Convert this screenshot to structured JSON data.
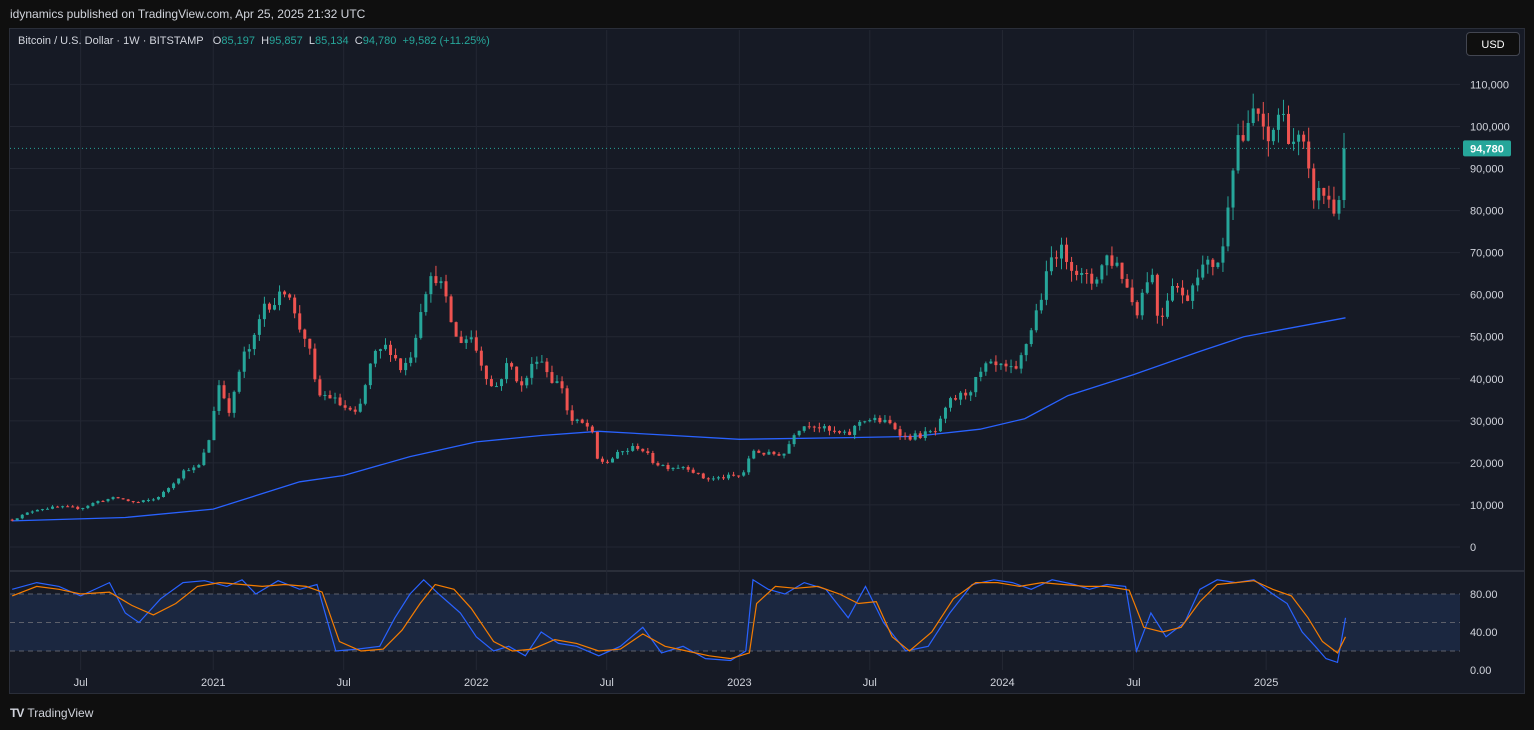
{
  "header": {
    "publisher_text": "idynamics published on TradingView.com, Apr 25, 2025 21:32 UTC"
  },
  "legend": {
    "symbol": "Bitcoin / U.S. Dollar · 1W · BITSTAMP",
    "open_label": "O",
    "open": "85,197",
    "high_label": "H",
    "high": "95,857",
    "low_label": "L",
    "low": "85,134",
    "close_label": "C",
    "close": "94,780",
    "change": "+9,582 (+11.25%)"
  },
  "currency_button": "USD",
  "last_price_label": "94,780",
  "footer": {
    "brand": "TradingView",
    "logo": "TV"
  },
  "colors": {
    "up": "#26a69a",
    "down": "#ef5350",
    "ma": "#2962ff",
    "stoch_k": "#2962ff",
    "stoch_d": "#f57c00",
    "grid": "#232733"
  },
  "chart_data": [
    {
      "type": "candlestick",
      "title": "",
      "timeframe": "1W",
      "x_ticks": [
        "Jul",
        "2021",
        "Jul",
        "2022",
        "Jul",
        "2023",
        "Jul",
        "2024",
        "Jul",
        "2025"
      ],
      "x_tick_dates": [
        "2020-07-01",
        "2021-01-01",
        "2021-07-01",
        "2022-01-01",
        "2022-07-01",
        "2023-01-01",
        "2023-07-01",
        "2024-01-01",
        "2024-07-01",
        "2025-01-01"
      ],
      "x_range": [
        "2020-03-25",
        "2025-09-20"
      ],
      "y_ticks": [
        0,
        10000,
        20000,
        30000,
        40000,
        50000,
        60000,
        70000,
        80000,
        90000,
        100000,
        110000
      ],
      "y_tick_labels": [
        "0",
        "10,000",
        "20,000",
        "30,000",
        "40,000",
        "50,000",
        "60,000",
        "70,000",
        "80,000",
        "90,000",
        "100,000",
        "110,000"
      ],
      "ylim": [
        -5000,
        117000
      ],
      "grid": true,
      "last_price": 94780,
      "close_series": {
        "dates": [
          "2020-03-28",
          "2020-05-01",
          "2020-06-01",
          "2020-07-01",
          "2020-07-27",
          "2020-08-20",
          "2020-09-15",
          "2020-10-10",
          "2020-10-25",
          "2020-11-10",
          "2020-11-25",
          "2020-12-10",
          "2020-12-25",
          "2021-01-08",
          "2021-01-25",
          "2021-02-10",
          "2021-02-25",
          "2021-03-13",
          "2021-04-01",
          "2021-04-14",
          "2021-04-25",
          "2021-05-12",
          "2021-05-25",
          "2021-06-10",
          "2021-06-25",
          "2021-07-20",
          "2021-08-10",
          "2021-09-01",
          "2021-09-20",
          "2021-10-05",
          "2021-10-20",
          "2021-11-08",
          "2021-11-20",
          "2021-12-05",
          "2021-12-25",
          "2022-01-10",
          "2022-01-25",
          "2022-02-15",
          "2022-03-05",
          "2022-03-28",
          "2022-04-15",
          "2022-05-01",
          "2022-05-10",
          "2022-05-25",
          "2022-06-10",
          "2022-06-15",
          "2022-06-30",
          "2022-07-20",
          "2022-08-15",
          "2022-09-05",
          "2022-09-25",
          "2022-10-20",
          "2022-11-09",
          "2022-11-25",
          "2022-12-20",
          "2023-01-05",
          "2023-01-20",
          "2023-02-10",
          "2023-03-05",
          "2023-03-20",
          "2023-04-10",
          "2023-05-05",
          "2023-06-01",
          "2023-06-20",
          "2023-07-15",
          "2023-08-01",
          "2023-08-20",
          "2023-09-10",
          "2023-10-01",
          "2023-10-20",
          "2023-11-15",
          "2023-12-10",
          "2024-01-01",
          "2024-01-20",
          "2024-02-10",
          "2024-02-28",
          "2024-03-13",
          "2024-04-01",
          "2024-04-20",
          "2024-05-05",
          "2024-05-25",
          "2024-06-10",
          "2024-07-05",
          "2024-07-25",
          "2024-08-05",
          "2024-08-25",
          "2024-09-10",
          "2024-09-28",
          "2024-10-15",
          "2024-11-01",
          "2024-11-12",
          "2024-11-22",
          "2024-12-05",
          "2024-12-17",
          "2025-01-01",
          "2025-01-20",
          "2025-02-05",
          "2025-02-20",
          "2025-03-05",
          "2025-03-25",
          "2025-04-08",
          "2025-04-21"
        ],
        "values": [
          6500,
          9000,
          9500,
          9200,
          11000,
          11700,
          10500,
          11300,
          13000,
          16000,
          18800,
          18500,
          24500,
          39000,
          32000,
          45000,
          48000,
          58000,
          58500,
          63000,
          54000,
          49000,
          36000,
          36000,
          34000,
          31000,
          45000,
          48000,
          42000,
          47000,
          61000,
          65000,
          58000,
          49000,
          50000,
          43000,
          37000,
          44000,
          38000,
          46000,
          40000,
          38000,
          30000,
          29500,
          28000,
          21000,
          20000,
          22500,
          24000,
          20000,
          19000,
          19200,
          16500,
          16200,
          16800,
          17000,
          23000,
          22000,
          22300,
          28000,
          29500,
          27500,
          26500,
          30500,
          30000,
          29000,
          26000,
          26600,
          27500,
          34500,
          37000,
          43000,
          42500,
          41500,
          52000,
          62000,
          71000,
          69000,
          64000,
          63000,
          69000,
          67000,
          56000,
          67000,
          53000,
          64000,
          58000,
          66000,
          67000,
          69000,
          88000,
          98000,
          97000,
          106000,
          94500,
          104000,
          97000,
          96000,
          84000,
          84000,
          79000,
          94780
        ]
      },
      "moving_average": {
        "dates": [
          "2020-03-28",
          "2020-09-01",
          "2021-01-01",
          "2021-05-01",
          "2021-07-01",
          "2021-10-01",
          "2022-01-01",
          "2022-04-01",
          "2022-06-20",
          "2022-10-01",
          "2023-01-01",
          "2023-06-01",
          "2023-09-01",
          "2023-12-01",
          "2024-02-01",
          "2024-04-01",
          "2024-07-01",
          "2024-10-01",
          "2024-12-01",
          "2025-04-21"
        ],
        "values": [
          6200,
          7000,
          9000,
          15500,
          17000,
          21500,
          25000,
          26500,
          27500,
          26500,
          25600,
          26000,
          26300,
          28000,
          30500,
          36000,
          41000,
          46500,
          50000,
          54500
        ]
      },
      "ma_note": ""
    },
    {
      "type": "line",
      "title": "",
      "ylim": [
        0,
        100
      ],
      "y_ticks": [
        0,
        40,
        80
      ],
      "y_tick_labels": [
        "0.00",
        "40.00",
        "80.00"
      ],
      "band": [
        20,
        80
      ],
      "midline": 50,
      "series": [
        {
          "name": "",
          "dates": [
            "2020-03-28",
            "2020-05-01",
            "2020-06-01",
            "2020-07-01",
            "2020-08-10",
            "2020-09-01",
            "2020-09-20",
            "2020-10-20",
            "2020-11-20",
            "2020-12-20",
            "2021-01-20",
            "2021-02-10",
            "2021-03-01",
            "2021-04-01",
            "2021-05-01",
            "2021-05-25",
            "2021-06-20",
            "2021-07-20",
            "2021-08-20",
            "2021-09-10",
            "2021-10-01",
            "2021-10-20",
            "2021-11-10",
            "2021-12-10",
            "2022-01-01",
            "2022-01-25",
            "2022-02-15",
            "2022-03-10",
            "2022-04-01",
            "2022-04-25",
            "2022-05-20",
            "2022-06-20",
            "2022-07-20",
            "2022-08-20",
            "2022-09-15",
            "2022-10-15",
            "2022-11-15",
            "2022-12-20",
            "2023-01-10",
            "2023-01-20",
            "2023-02-10",
            "2023-03-05",
            "2023-04-01",
            "2023-05-01",
            "2023-06-01",
            "2023-06-25",
            "2023-07-20",
            "2023-08-20",
            "2023-09-20",
            "2023-10-20",
            "2023-11-20",
            "2023-12-20",
            "2024-01-15",
            "2024-02-10",
            "2024-03-10",
            "2024-04-10",
            "2024-05-01",
            "2024-05-25",
            "2024-06-20",
            "2024-07-05",
            "2024-07-25",
            "2024-08-15",
            "2024-09-10",
            "2024-10-01",
            "2024-10-25",
            "2024-11-20",
            "2024-12-15",
            "2025-01-10",
            "2025-01-30",
            "2025-02-20",
            "2025-03-10",
            "2025-03-25",
            "2025-04-10",
            "2025-04-21"
          ],
          "values": [
            85,
            92,
            88,
            78,
            92,
            60,
            50,
            75,
            92,
            94,
            88,
            95,
            80,
            94,
            85,
            90,
            20,
            22,
            25,
            55,
            80,
            95,
            80,
            60,
            35,
            20,
            25,
            15,
            40,
            28,
            25,
            15,
            25,
            45,
            18,
            25,
            12,
            10,
            20,
            95,
            85,
            80,
            92,
            85,
            55,
            88,
            50,
            20,
            25,
            60,
            90,
            95,
            92,
            85,
            95,
            90,
            85,
            90,
            88,
            20,
            60,
            35,
            50,
            85,
            95,
            92,
            95,
            80,
            70,
            40,
            25,
            12,
            8,
            55
          ]
        },
        {
          "name": "",
          "dates": [
            "2020-03-28",
            "2020-05-01",
            "2020-06-01",
            "2020-07-01",
            "2020-08-10",
            "2020-09-10",
            "2020-10-10",
            "2020-11-10",
            "2020-12-10",
            "2021-01-10",
            "2021-02-10",
            "2021-03-10",
            "2021-04-10",
            "2021-05-10",
            "2021-06-01",
            "2021-06-25",
            "2021-07-25",
            "2021-08-25",
            "2021-09-20",
            "2021-10-15",
            "2021-11-05",
            "2021-12-01",
            "2021-12-25",
            "2022-01-25",
            "2022-02-20",
            "2022-03-20",
            "2022-04-20",
            "2022-05-20",
            "2022-06-20",
            "2022-07-20",
            "2022-08-20",
            "2022-09-20",
            "2022-10-20",
            "2022-11-20",
            "2022-12-20",
            "2023-01-15",
            "2023-01-25",
            "2023-02-20",
            "2023-03-20",
            "2023-04-20",
            "2023-05-20",
            "2023-06-15",
            "2023-07-10",
            "2023-08-01",
            "2023-08-25",
            "2023-09-25",
            "2023-10-25",
            "2023-11-25",
            "2023-12-25",
            "2024-01-25",
            "2024-02-25",
            "2024-03-25",
            "2024-04-25",
            "2024-05-25",
            "2024-06-25",
            "2024-07-15",
            "2024-08-10",
            "2024-09-05",
            "2024-10-01",
            "2024-10-25",
            "2024-11-20",
            "2024-12-15",
            "2025-01-10",
            "2025-02-05",
            "2025-02-28",
            "2025-03-20",
            "2025-04-10",
            "2025-04-21"
          ],
          "values": [
            78,
            88,
            85,
            80,
            82,
            68,
            58,
            70,
            88,
            92,
            90,
            88,
            90,
            88,
            82,
            30,
            20,
            22,
            42,
            70,
            90,
            85,
            65,
            30,
            20,
            22,
            32,
            28,
            20,
            22,
            38,
            25,
            20,
            15,
            12,
            18,
            70,
            88,
            86,
            88,
            80,
            70,
            72,
            35,
            20,
            40,
            75,
            92,
            92,
            88,
            92,
            90,
            88,
            88,
            84,
            45,
            40,
            45,
            72,
            90,
            92,
            94,
            85,
            78,
            55,
            30,
            18,
            35
          ]
        }
      ]
    }
  ]
}
